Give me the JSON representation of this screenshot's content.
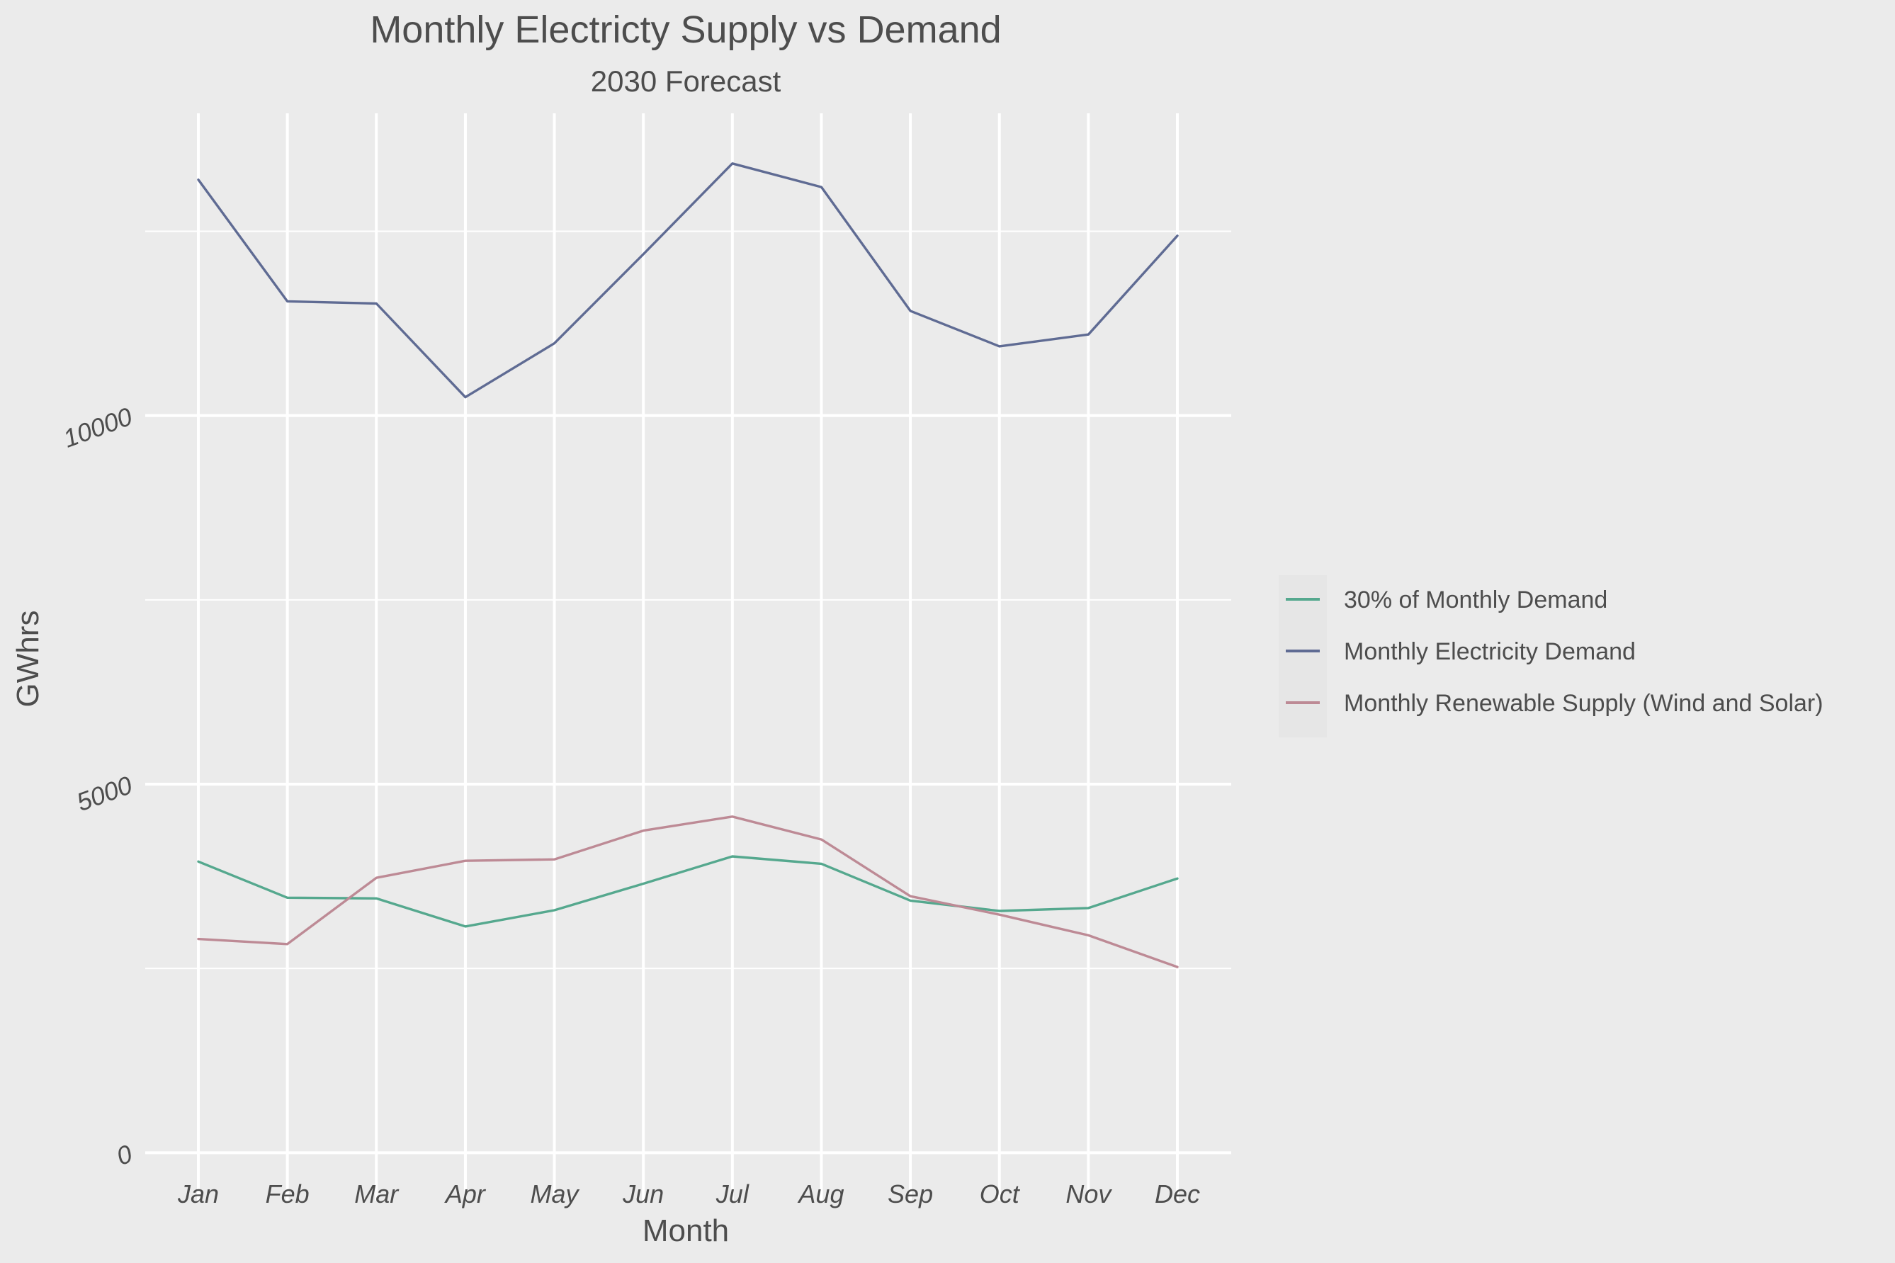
{
  "chart_data": {
    "type": "line",
    "title": "Monthly Electricty Supply vs Demand",
    "subtitle": "2030 Forecast",
    "xlabel": "Month",
    "ylabel": "GWhrs",
    "categories": [
      "Jan",
      "Feb",
      "Mar",
      "Apr",
      "May",
      "Jun",
      "Jul",
      "Aug",
      "Sep",
      "Oct",
      "Nov",
      "Dec"
    ],
    "ylim": [
      -650,
      14100
    ],
    "yticks": [
      0,
      5000,
      10000
    ],
    "grid": true,
    "legend_position": "right",
    "series": [
      {
        "name": "30% of Monthly Demand",
        "color": "#55a88e",
        "values": [
          3950,
          3460,
          3450,
          3070,
          3290,
          3650,
          4020,
          3920,
          3420,
          3280,
          3320,
          3720
        ]
      },
      {
        "name": "Monthly Electricity Demand",
        "color": "#5f6b93",
        "values": [
          13200,
          11550,
          11520,
          10250,
          10980,
          12190,
          13420,
          13100,
          11420,
          10940,
          11100,
          12440
        ]
      },
      {
        "name": "Monthly Renewable Supply (Wind and Solar)",
        "color": "#bd8a95",
        "values": [
          2900,
          2830,
          3730,
          3960,
          3980,
          4370,
          4560,
          4250,
          3480,
          3230,
          2950,
          2520
        ]
      }
    ]
  }
}
